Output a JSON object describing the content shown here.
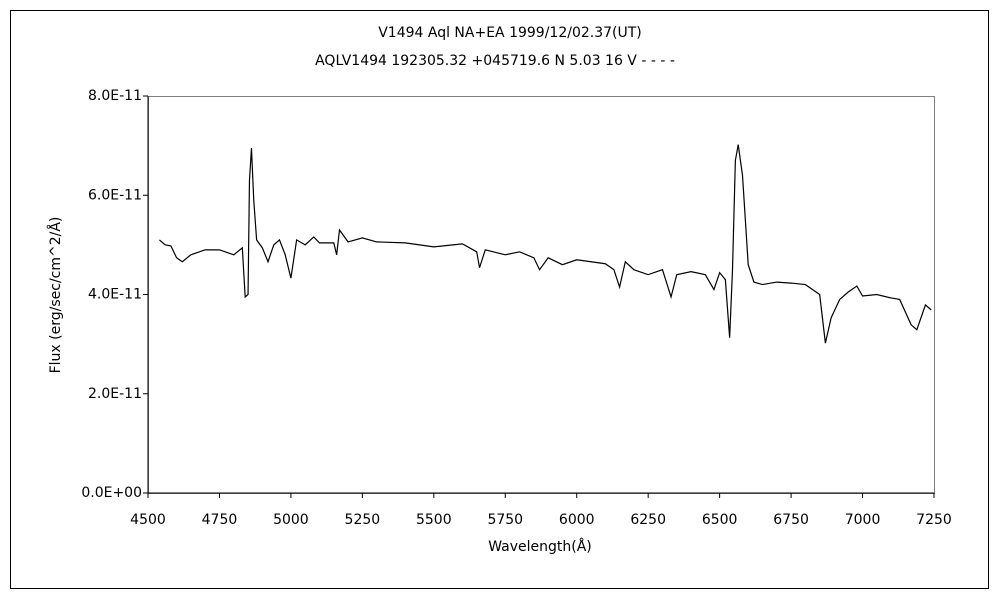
{
  "chart_data": {
    "type": "line",
    "title": "V1494 Aql    NA+EA    1999/12/02.37(UT)",
    "subtitle": "AQLV1494 192305.32 +045719.6 N 5.03 16 V - - - -",
    "x_label": "Wavelength(Å)",
    "y_label": "Flux (erg/sec/cm^2/Å)",
    "xlim": [
      4500,
      7250
    ],
    "xticks": [
      4500,
      4750,
      5000,
      5250,
      5500,
      5750,
      6000,
      6250,
      6500,
      6750,
      7000,
      7250
    ],
    "ylim": [
      0,
      8e-11
    ],
    "yticks": [
      {
        "value": 0,
        "label": "0.0E+00"
      },
      {
        "value": 2e-11,
        "label": "2.0E-11"
      },
      {
        "value": 4e-11,
        "label": "4.0E-11"
      },
      {
        "value": 6e-11,
        "label": "6.0E-11"
      },
      {
        "value": 8e-11,
        "label": "8.0E-11"
      }
    ],
    "grid": false,
    "series": [
      {
        "color": "#000000",
        "x": [
          4540,
          4560,
          4580,
          4600,
          4620,
          4650,
          4700,
          4750,
          4800,
          4830,
          4840,
          4850,
          4855,
          4862,
          4870,
          4880,
          4900,
          4920,
          4940,
          4960,
          4980,
          5000,
          5020,
          5050,
          5080,
          5100,
          5150,
          5160,
          5170,
          5200,
          5250,
          5300,
          5400,
          5500,
          5600,
          5650,
          5660,
          5680,
          5750,
          5800,
          5850,
          5870,
          5900,
          5950,
          6000,
          6100,
          6130,
          6150,
          6170,
          6200,
          6250,
          6300,
          6330,
          6350,
          6400,
          6450,
          6480,
          6500,
          6520,
          6535,
          6545,
          6555,
          6565,
          6580,
          6600,
          6620,
          6650,
          6700,
          6750,
          6800,
          6850,
          6870,
          6890,
          6920,
          6950,
          6980,
          7000,
          7050,
          7100,
          7130,
          7170,
          7190,
          7220,
          7240
        ],
        "values": [
          5.1e-11,
          5e-11,
          4.98e-11,
          4.74e-11,
          4.66e-11,
          4.8e-11,
          4.9e-11,
          4.9e-11,
          4.8e-11,
          4.94e-11,
          3.95e-11,
          4e-11,
          6.3e-11,
          6.95e-11,
          5.9e-11,
          5.1e-11,
          4.94e-11,
          4.66e-11,
          5e-11,
          5.1e-11,
          4.8e-11,
          4.33e-11,
          5.1e-11,
          5e-11,
          5.16e-11,
          5.04e-11,
          5.04e-11,
          4.8e-11,
          5.3e-11,
          5.06e-11,
          5.14e-11,
          5.06e-11,
          5.04e-11,
          4.96e-11,
          5.02e-11,
          4.86e-11,
          4.54e-11,
          4.9e-11,
          4.8e-11,
          4.86e-11,
          4.74e-11,
          4.5e-11,
          4.74e-11,
          4.6e-11,
          4.7e-11,
          4.62e-11,
          4.5e-11,
          4.15e-11,
          4.66e-11,
          4.5e-11,
          4.4e-11,
          4.5e-11,
          3.95e-11,
          4.4e-11,
          4.46e-11,
          4.4e-11,
          4.1e-11,
          4.44e-11,
          4.3e-11,
          3.13e-11,
          4.5e-11,
          6.7e-11,
          7.02e-11,
          6.4e-11,
          4.6e-11,
          4.25e-11,
          4.2e-11,
          4.25e-11,
          4.23e-11,
          4.2e-11,
          4e-11,
          3.02e-11,
          3.53e-11,
          3.9e-11,
          4.05e-11,
          4.17e-11,
          3.97e-11,
          4e-11,
          3.93e-11,
          3.9e-11,
          3.39e-11,
          3.29e-11,
          3.79e-11,
          3.69e-11
        ]
      }
    ]
  }
}
